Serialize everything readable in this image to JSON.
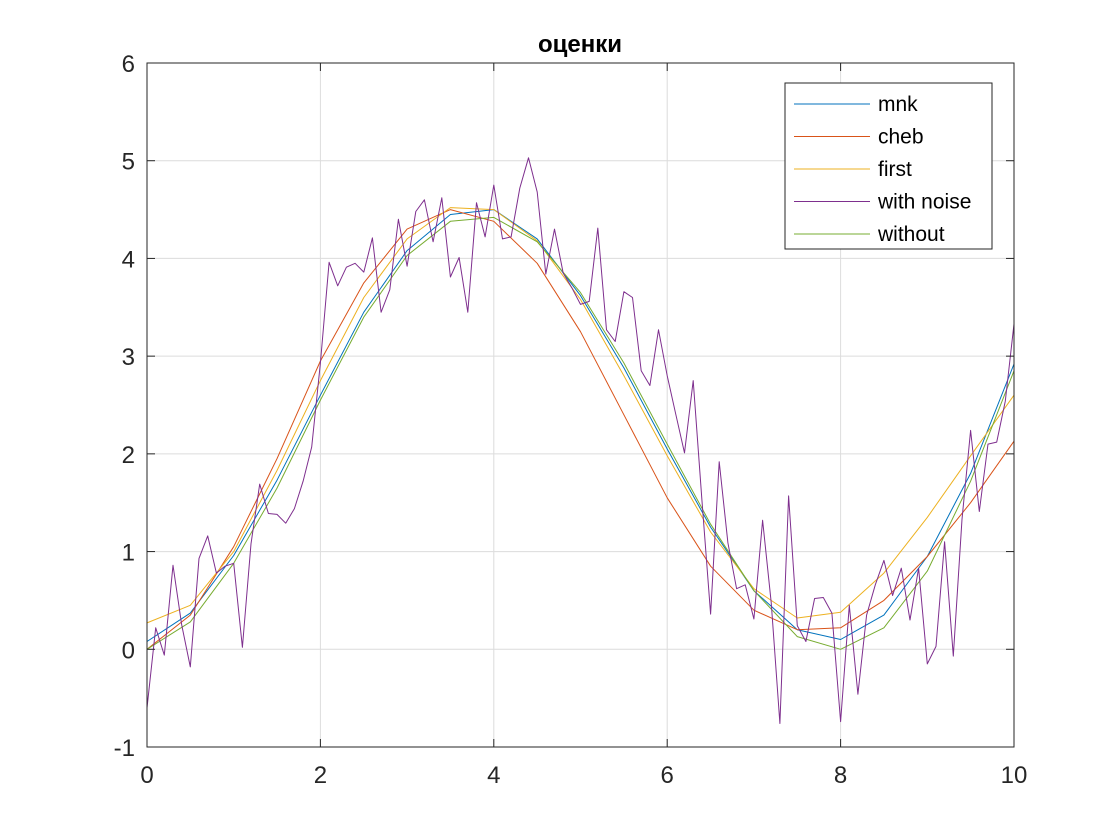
{
  "chart_data": {
    "type": "line",
    "title": "оценки",
    "xlabel": "",
    "ylabel": "",
    "xlim": [
      0,
      10
    ],
    "ylim": [
      -1,
      6
    ],
    "xticks": [
      0,
      2,
      4,
      6,
      8,
      10
    ],
    "xtick_labels": [
      "0",
      "2",
      "4",
      "6",
      "8",
      "10"
    ],
    "yticks": [
      -1,
      0,
      1,
      2,
      3,
      4,
      5,
      6
    ],
    "ytick_labels": [
      "-1",
      "0",
      "1",
      "2",
      "3",
      "4",
      "5",
      "6"
    ],
    "grid": true,
    "legend_position": "top-right",
    "x": [
      0,
      0.5,
      1,
      1.5,
      2,
      2.5,
      3,
      3.5,
      4,
      4.5,
      5,
      5.5,
      6,
      6.5,
      7,
      7.5,
      8,
      8.5,
      9,
      9.5,
      10
    ],
    "series": [
      {
        "name": "mnk",
        "color": "#0072BD",
        "values": [
          0.08,
          0.37,
          0.96,
          1.73,
          2.6,
          3.45,
          4.08,
          4.45,
          4.5,
          4.2,
          3.62,
          2.88,
          2.05,
          1.25,
          0.6,
          0.2,
          0.1,
          0.35,
          0.95,
          1.8,
          2.92
        ]
      },
      {
        "name": "cheb",
        "color": "#D95319",
        "values": [
          0.0,
          0.35,
          1.05,
          1.95,
          2.95,
          3.75,
          4.3,
          4.5,
          4.38,
          3.95,
          3.25,
          2.4,
          1.55,
          0.85,
          0.4,
          0.2,
          0.22,
          0.5,
          0.95,
          1.5,
          2.13
        ]
      },
      {
        "name": "first",
        "color": "#EDB120",
        "values": [
          0.27,
          0.45,
          1.0,
          1.83,
          2.75,
          3.6,
          4.2,
          4.52,
          4.5,
          4.18,
          3.58,
          2.8,
          1.98,
          1.2,
          0.62,
          0.32,
          0.38,
          0.78,
          1.35,
          1.98,
          2.6
        ]
      },
      {
        "name": "with noise",
        "color": "#7E2F8E",
        "x": [
          0,
          0.1,
          0.2,
          0.3,
          0.4,
          0.5,
          0.6,
          0.7,
          0.8,
          0.9,
          1.0,
          1.1,
          1.2,
          1.3,
          1.4,
          1.5,
          1.6,
          1.7,
          1.8,
          1.9,
          2.0,
          2.1,
          2.2,
          2.3,
          2.4,
          2.5,
          2.6,
          2.7,
          2.8,
          2.9,
          3.0,
          3.1,
          3.2,
          3.3,
          3.4,
          3.5,
          3.6,
          3.7,
          3.8,
          3.9,
          4.0,
          4.1,
          4.2,
          4.3,
          4.4,
          4.5,
          4.6,
          4.7,
          4.8,
          4.9,
          5.0,
          5.1,
          5.2,
          5.3,
          5.4,
          5.5,
          5.6,
          5.7,
          5.8,
          5.9,
          6.0,
          6.1,
          6.2,
          6.3,
          6.4,
          6.5,
          6.6,
          6.7,
          6.8,
          6.9,
          7.0,
          7.1,
          7.2,
          7.3,
          7.4,
          7.5,
          7.6,
          7.7,
          7.8,
          7.9,
          8.0,
          8.1,
          8.2,
          8.3,
          8.4,
          8.5,
          8.6,
          8.7,
          8.8,
          8.9,
          9.0,
          9.1,
          9.2,
          9.3,
          9.4,
          9.5,
          9.6,
          9.7,
          9.8,
          9.9,
          10.0
        ],
        "values": [
          -0.6,
          0.22,
          -0.06,
          0.86,
          0.25,
          -0.18,
          0.93,
          1.16,
          0.78,
          0.85,
          0.88,
          0.02,
          1.08,
          1.69,
          1.39,
          1.38,
          1.29,
          1.44,
          1.72,
          2.07,
          2.93,
          3.96,
          3.72,
          3.91,
          3.95,
          3.86,
          4.21,
          3.45,
          3.68,
          4.4,
          3.92,
          4.48,
          4.6,
          4.17,
          4.62,
          3.81,
          4.01,
          3.45,
          4.57,
          4.22,
          4.75,
          4.2,
          4.22,
          4.72,
          5.03,
          4.68,
          3.84,
          4.3,
          3.85,
          3.7,
          3.53,
          3.56,
          4.31,
          3.27,
          3.15,
          3.66,
          3.6,
          2.85,
          2.7,
          3.27,
          2.8,
          2.4,
          2.01,
          2.75,
          1.53,
          0.36,
          1.92,
          1.09,
          0.62,
          0.66,
          0.31,
          1.32,
          0.48,
          -0.76,
          1.57,
          0.24,
          0.08,
          0.52,
          0.53,
          0.37,
          -0.74,
          0.45,
          -0.46,
          0.35,
          0.66,
          0.91,
          0.55,
          0.83,
          0.3,
          0.83,
          -0.15,
          0.03,
          1.1,
          -0.07,
          1.33,
          2.24,
          1.41,
          2.1,
          2.12,
          2.54,
          3.33
        ]
      },
      {
        "name": "without",
        "color": "#77AC30",
        "values": [
          0.0,
          0.28,
          0.88,
          1.65,
          2.55,
          3.4,
          4.03,
          4.38,
          4.42,
          4.17,
          3.65,
          2.93,
          2.1,
          1.28,
          0.6,
          0.13,
          0.0,
          0.22,
          0.8,
          1.72,
          2.85
        ]
      }
    ]
  }
}
